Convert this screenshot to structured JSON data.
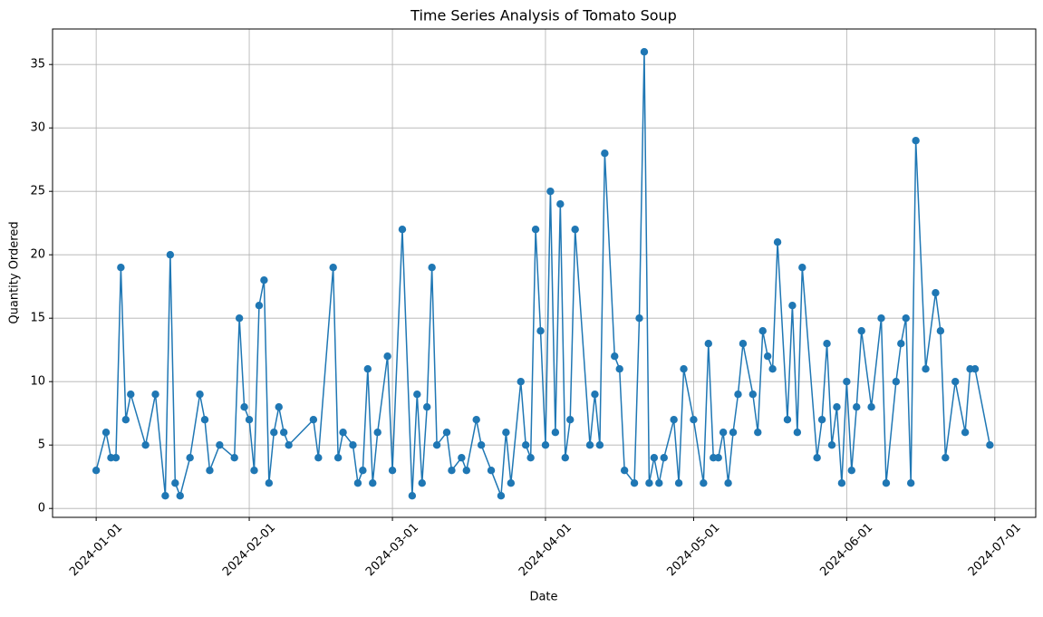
{
  "chart_data": {
    "type": "line",
    "title": "Time Series Analysis of Tomato Soup",
    "x_label": "Date",
    "y_label": "Quantity Ordered",
    "color": "#1f77b4",
    "grid": true,
    "x": [
      "2024-01-01",
      "2024-01-03",
      "2024-01-04",
      "2024-01-05",
      "2024-01-06",
      "2024-01-07",
      "2024-01-08",
      "2024-01-11",
      "2024-01-13",
      "2024-01-15",
      "2024-01-16",
      "2024-01-17",
      "2024-01-18",
      "2024-01-20",
      "2024-01-22",
      "2024-01-23",
      "2024-01-24",
      "2024-01-26",
      "2024-01-29",
      "2024-01-30",
      "2024-01-31",
      "2024-02-01",
      "2024-02-02",
      "2024-02-03",
      "2024-02-04",
      "2024-02-05",
      "2024-02-06",
      "2024-02-07",
      "2024-02-08",
      "2024-02-09",
      "2024-02-14",
      "2024-02-15",
      "2024-02-18",
      "2024-02-19",
      "2024-02-20",
      "2024-02-22",
      "2024-02-23",
      "2024-02-24",
      "2024-02-25",
      "2024-02-26",
      "2024-02-27",
      "2024-02-29",
      "2024-03-01",
      "2024-03-03",
      "2024-03-05",
      "2024-03-06",
      "2024-03-07",
      "2024-03-08",
      "2024-03-09",
      "2024-03-10",
      "2024-03-12",
      "2024-03-13",
      "2024-03-15",
      "2024-03-16",
      "2024-03-18",
      "2024-03-19",
      "2024-03-21",
      "2024-03-23",
      "2024-03-24",
      "2024-03-25",
      "2024-03-27",
      "2024-03-28",
      "2024-03-29",
      "2024-03-30",
      "2024-03-31",
      "2024-04-01",
      "2024-04-02",
      "2024-04-03",
      "2024-04-04",
      "2024-04-05",
      "2024-04-06",
      "2024-04-07",
      "2024-04-10",
      "2024-04-11",
      "2024-04-12",
      "2024-04-13",
      "2024-04-15",
      "2024-04-16",
      "2024-04-17",
      "2024-04-19",
      "2024-04-20",
      "2024-04-21",
      "2024-04-22",
      "2024-04-23",
      "2024-04-24",
      "2024-04-25",
      "2024-04-27",
      "2024-04-28",
      "2024-04-29",
      "2024-05-01",
      "2024-05-03",
      "2024-05-04",
      "2024-05-05",
      "2024-05-06",
      "2024-05-07",
      "2024-05-08",
      "2024-05-09",
      "2024-05-10",
      "2024-05-11",
      "2024-05-13",
      "2024-05-14",
      "2024-05-15",
      "2024-05-16",
      "2024-05-17",
      "2024-05-18",
      "2024-05-20",
      "2024-05-21",
      "2024-05-22",
      "2024-05-23",
      "2024-05-26",
      "2024-05-27",
      "2024-05-28",
      "2024-05-29",
      "2024-05-30",
      "2024-05-31",
      "2024-06-01",
      "2024-06-02",
      "2024-06-03",
      "2024-06-04",
      "2024-06-06",
      "2024-06-08",
      "2024-06-09",
      "2024-06-11",
      "2024-06-12",
      "2024-06-13",
      "2024-06-14",
      "2024-06-15",
      "2024-06-17",
      "2024-06-19",
      "2024-06-20",
      "2024-06-21",
      "2024-06-23",
      "2024-06-25",
      "2024-06-26",
      "2024-06-27",
      "2024-06-30"
    ],
    "values": [
      3,
      6,
      4,
      4,
      19,
      7,
      9,
      5,
      9,
      1,
      20,
      2,
      1,
      4,
      9,
      7,
      3,
      5,
      4,
      15,
      8,
      7,
      3,
      16,
      18,
      2,
      6,
      8,
      6,
      5,
      7,
      4,
      19,
      4,
      6,
      5,
      2,
      3,
      11,
      2,
      6,
      12,
      3,
      22,
      1,
      9,
      2,
      8,
      19,
      5,
      6,
      3,
      4,
      3,
      7,
      5,
      3,
      1,
      6,
      2,
      10,
      5,
      4,
      22,
      14,
      5,
      25,
      6,
      24,
      4,
      7,
      22,
      5,
      9,
      5,
      28,
      12,
      11,
      3,
      2,
      15,
      36,
      2,
      4,
      2,
      4,
      7,
      2,
      11,
      7,
      2,
      13,
      4,
      4,
      6,
      2,
      6,
      9,
      13,
      9,
      6,
      14,
      12,
      11,
      21,
      7,
      16,
      6,
      19,
      4,
      7,
      13,
      5,
      8,
      2,
      10,
      3,
      8,
      14,
      8,
      15,
      2,
      10,
      13,
      15,
      2,
      29,
      11,
      17,
      14,
      4,
      10,
      6,
      11,
      11,
      5
    ],
    "xlim": [
      "2023-12-23T04:00",
      "2024-07-09T07:00"
    ],
    "xticks": [
      "2024-01-01",
      "2024-02-01",
      "2024-03-01",
      "2024-04-01",
      "2024-05-01",
      "2024-06-01",
      "2024-07-01"
    ],
    "ylim": [
      -0.7,
      37.8
    ],
    "yticks": [
      0,
      5,
      10,
      15,
      20,
      25,
      30,
      35
    ]
  }
}
